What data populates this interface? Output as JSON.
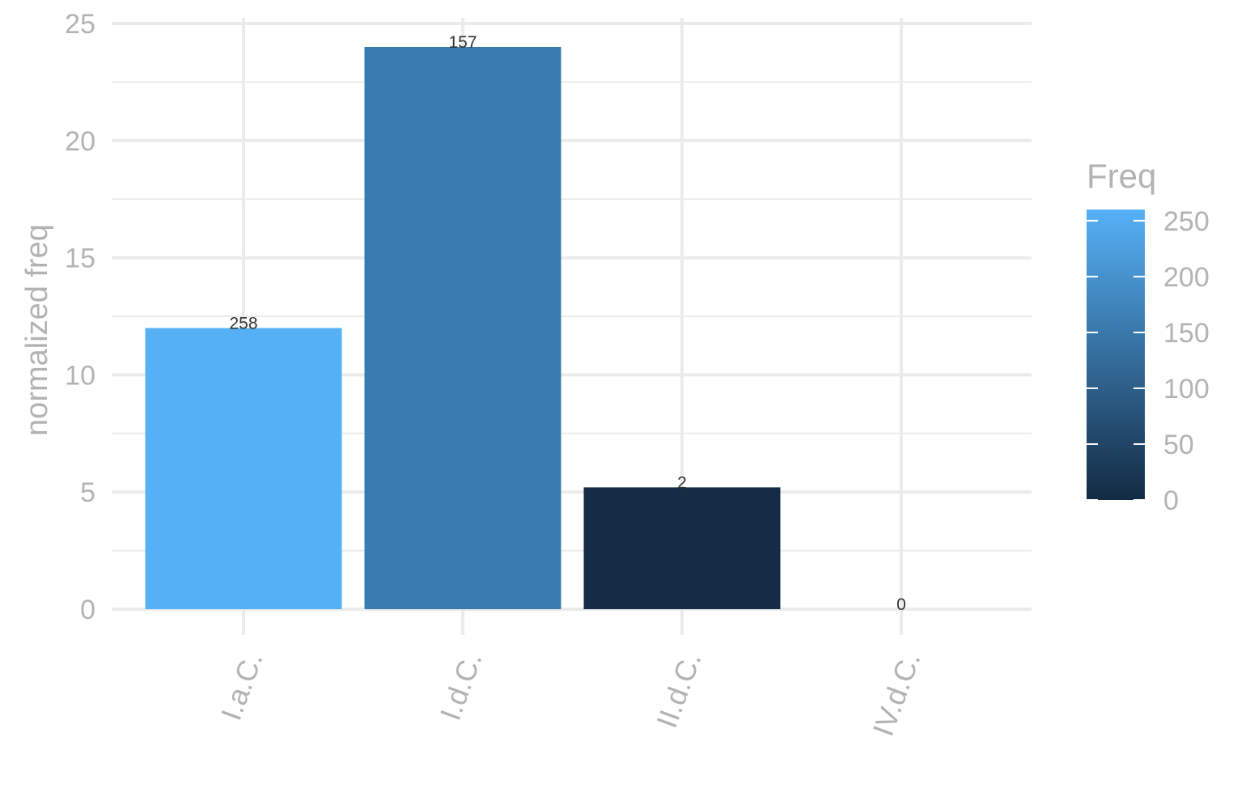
{
  "chart_data": {
    "type": "bar",
    "categories": [
      "I.a.C.",
      "I.d.C.",
      "II.d.C.",
      "IV.d.C."
    ],
    "values": [
      12.0,
      24.0,
      5.2,
      0.0
    ],
    "freq": [
      258,
      157,
      2,
      0
    ],
    "bar_labels": [
      "258",
      "157",
      "2",
      "0"
    ],
    "xlabel": "",
    "ylabel": "normalized freq",
    "ylim": [
      0,
      25
    ],
    "yticks": [
      "0",
      "5",
      "10",
      "15",
      "20",
      "25"
    ],
    "grid": true,
    "legend": {
      "title": "Freq",
      "position": "right",
      "type": "colorbar",
      "range": [
        0,
        260
      ],
      "ticks": [
        "0",
        "50",
        "100",
        "150",
        "200",
        "250"
      ],
      "color_low": "#132B43",
      "color_high": "#56B1F7"
    }
  }
}
